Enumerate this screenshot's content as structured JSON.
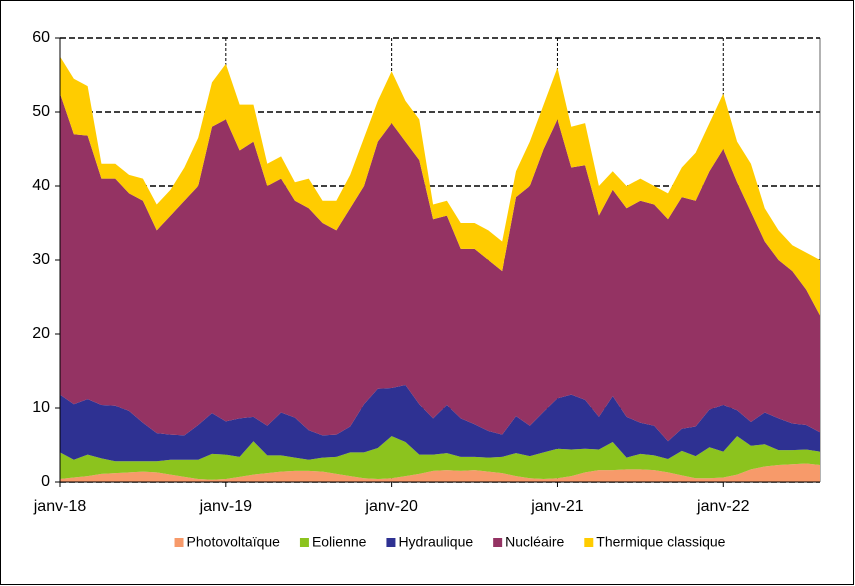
{
  "chart_data": {
    "type": "area",
    "stacked": true,
    "categories": [
      "janv-18",
      null,
      null,
      null,
      null,
      null,
      null,
      null,
      null,
      null,
      null,
      null,
      "janv-19",
      null,
      null,
      null,
      null,
      null,
      null,
      null,
      null,
      null,
      null,
      null,
      "janv-20",
      null,
      null,
      null,
      null,
      null,
      null,
      null,
      null,
      null,
      null,
      null,
      "janv-21",
      null,
      null,
      null,
      null,
      null,
      null,
      null,
      null,
      null,
      null,
      null,
      "janv-22",
      null,
      null,
      null,
      null,
      null,
      null,
      null
    ],
    "ylim": [
      0,
      60
    ],
    "yticks": [
      0,
      10,
      20,
      30,
      40,
      50,
      60
    ],
    "grid": true,
    "legend": "bottom",
    "series": [
      {
        "name": "Photovoltaïque",
        "color": "#f79a6a",
        "values": [
          0.4,
          0.6,
          0.8,
          1.1,
          1.2,
          1.3,
          1.4,
          1.3,
          1.0,
          0.7,
          0.4,
          0.3,
          0.4,
          0.7,
          1.0,
          1.2,
          1.4,
          1.5,
          1.5,
          1.4,
          1.1,
          0.8,
          0.5,
          0.4,
          0.5,
          0.8,
          1.1,
          1.5,
          1.6,
          1.5,
          1.6,
          1.4,
          1.2,
          0.8,
          0.5,
          0.4,
          0.5,
          0.8,
          1.3,
          1.6,
          1.6,
          1.7,
          1.7,
          1.6,
          1.3,
          0.9,
          0.5,
          0.5,
          0.6,
          1.0,
          1.7,
          2.1,
          2.3,
          2.4,
          2.5,
          2.3
        ]
      },
      {
        "name": "Eolienne",
        "color": "#8cc31e",
        "values": [
          3.6,
          2.4,
          2.9,
          2.1,
          1.6,
          1.5,
          1.4,
          1.5,
          2.0,
          2.3,
          2.6,
          3.5,
          3.3,
          2.7,
          4.5,
          2.4,
          2.2,
          1.8,
          1.5,
          1.9,
          2.3,
          3.2,
          3.5,
          4.2,
          5.7,
          4.6,
          2.6,
          2.2,
          2.3,
          1.9,
          1.8,
          1.9,
          2.2,
          3.1,
          3.0,
          3.6,
          4.0,
          3.6,
          3.2,
          2.8,
          3.8,
          1.6,
          2.1,
          2.0,
          1.8,
          3.3,
          3.0,
          4.2,
          3.5,
          5.2,
          3.2,
          3.0,
          2.0,
          1.9,
          1.9,
          1.8
        ]
      },
      {
        "name": "Hydraulique",
        "color": "#2e3192",
        "values": [
          7.8,
          7.5,
          7.5,
          7.2,
          7.5,
          6.8,
          5.2,
          3.8,
          3.4,
          3.3,
          4.7,
          5.5,
          4.5,
          5.2,
          3.3,
          4.0,
          5.8,
          5.4,
          4.0,
          3.0,
          3.0,
          3.5,
          6.5,
          8.0,
          6.5,
          7.7,
          6.8,
          4.9,
          6.5,
          5.2,
          4.4,
          3.6,
          3.0,
          5.0,
          4.1,
          5.5,
          6.8,
          7.4,
          6.6,
          4.4,
          6.2,
          5.5,
          4.2,
          4.0,
          2.4,
          3.0,
          4.0,
          5.1,
          6.3,
          3.5,
          3.2,
          4.3,
          4.3,
          3.6,
          3.3,
          2.6
        ]
      },
      {
        "name": "Nucléaire",
        "color": "#943363",
        "values": [
          40.7,
          36.5,
          35.6,
          30.6,
          30.7,
          29.4,
          30.0,
          27.4,
          29.6,
          31.7,
          32.3,
          38.7,
          40.8,
          36.2,
          37.2,
          32.4,
          31.6,
          29.3,
          30.0,
          28.7,
          27.6,
          29.5,
          29.5,
          33.4,
          35.8,
          32.9,
          33.0,
          26.9,
          25.6,
          22.9,
          23.7,
          23.1,
          22.1,
          29.6,
          32.4,
          35.5,
          37.7,
          30.7,
          31.7,
          27.2,
          27.9,
          28.2,
          30.0,
          29.9,
          30.0,
          31.3,
          30.5,
          32.2,
          34.6,
          30.8,
          28.4,
          23.1,
          21.4,
          20.6,
          18.3,
          15.8
        ]
      },
      {
        "name": "Thermique classique",
        "color": "#ffcc00",
        "values": [
          5.0,
          7.5,
          6.7,
          2.0,
          2.0,
          2.5,
          3.0,
          3.5,
          3.5,
          4.5,
          6.5,
          6.0,
          7.5,
          6.2,
          5.0,
          3.0,
          3.0,
          2.5,
          4.0,
          3.0,
          4.0,
          4.5,
          6.5,
          5.5,
          7.0,
          5.5,
          5.5,
          2.0,
          2.0,
          3.5,
          3.5,
          4.0,
          4.0,
          3.5,
          6.0,
          6.0,
          7.0,
          5.5,
          5.7,
          4.0,
          2.5,
          3.0,
          3.0,
          2.5,
          3.5,
          4.0,
          6.5,
          6.5,
          7.5,
          5.5,
          6.5,
          4.5,
          4.0,
          3.5,
          5.0,
          7.5
        ]
      }
    ]
  }
}
